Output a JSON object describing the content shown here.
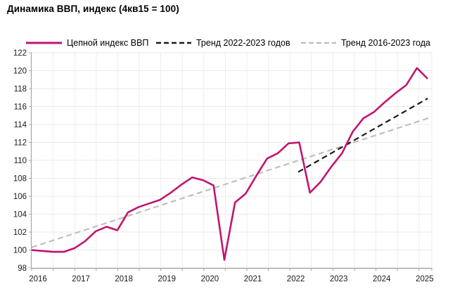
{
  "page": {
    "title": "Динамика ВВП, индекс (4кв15 = 100)"
  },
  "chart_data": {
    "type": "line",
    "title": "Динамика ВВП, индекс (4кв15 = 100)",
    "base_note": "4кв15 = 100",
    "grid": "on",
    "legend_position": "top",
    "x_axis": {
      "tick_labels": [
        "2016",
        "2017",
        "2018",
        "2019",
        "2020",
        "2021",
        "2022",
        "2023",
        "2024",
        "2025"
      ],
      "frequency": "quarterly"
    },
    "y_axis": {
      "min": 98,
      "max": 122,
      "step": 2
    },
    "series": [
      {
        "name": "Цепной индекс ВВП",
        "color": "#C2156E",
        "style": "solid",
        "start_quarter": "2015Q4",
        "frequency": "quarterly",
        "values": [
          100.0,
          99.9,
          99.8,
          99.8,
          100.2,
          101.0,
          102.1,
          102.6,
          102.2,
          104.2,
          104.8,
          105.2,
          105.6,
          106.4,
          107.3,
          108.1,
          107.8,
          107.2,
          98.9,
          105.3,
          106.3,
          108.3,
          110.2,
          110.8,
          111.9,
          112.0,
          106.4,
          107.6,
          109.3,
          110.8,
          113.2,
          114.7,
          115.4,
          116.5,
          117.5,
          118.4,
          120.3,
          119.1
        ]
      },
      {
        "name": "Тренд 2022-2023 годов",
        "color": "#1A1A1A",
        "style": "dashed",
        "points": [
          {
            "quarter_index": 24.9,
            "quarter": "2022Q1",
            "value": 108.7
          },
          {
            "quarter_index": 37.0,
            "quarter": "2025Q1",
            "value": 116.9
          }
        ]
      },
      {
        "name": "Тренд 2016-2023 года",
        "color": "#BFBFBF",
        "style": "dashed",
        "points": [
          {
            "quarter_index": 0,
            "quarter": "2015Q4",
            "value": 100.3
          },
          {
            "quarter_index": 37.3,
            "quarter": "2025Q1",
            "value": 114.8
          }
        ]
      }
    ]
  }
}
